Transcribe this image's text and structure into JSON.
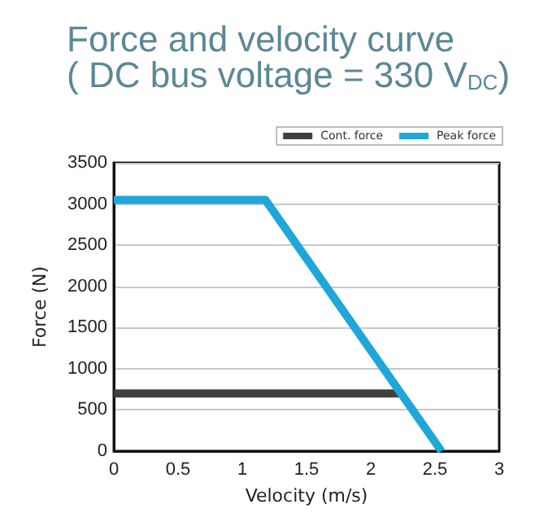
{
  "chart_data": {
    "type": "line",
    "title": "Force and velocity curve",
    "subtitle": "( DC bus voltage = 330 V$_{DC}$)",
    "xlabel": "Velocity (m/s)",
    "ylabel": "Force (N)",
    "series": [
      {
        "name": "Cont. force",
        "color": "#404040",
        "x": [
          0,
          2.22
        ],
        "values": [
          700,
          700
        ]
      },
      {
        "name": "Peak force",
        "color": "#1ea7d8",
        "x": [
          0,
          1.18,
          2.55
        ],
        "values": [
          3050,
          3050,
          0
        ]
      }
    ],
    "xlim": [
      0,
      3
    ],
    "xticks": [
      0,
      0.5,
      1,
      1.5,
      2,
      2.5,
      3
    ],
    "ylim": [
      0,
      3500
    ],
    "yticks": [
      0,
      500,
      1000,
      1500,
      2000,
      2500,
      3000,
      3500
    ],
    "grid": "y",
    "legend": "top right",
    "marker": "none",
    "line_style": "solid"
  }
}
